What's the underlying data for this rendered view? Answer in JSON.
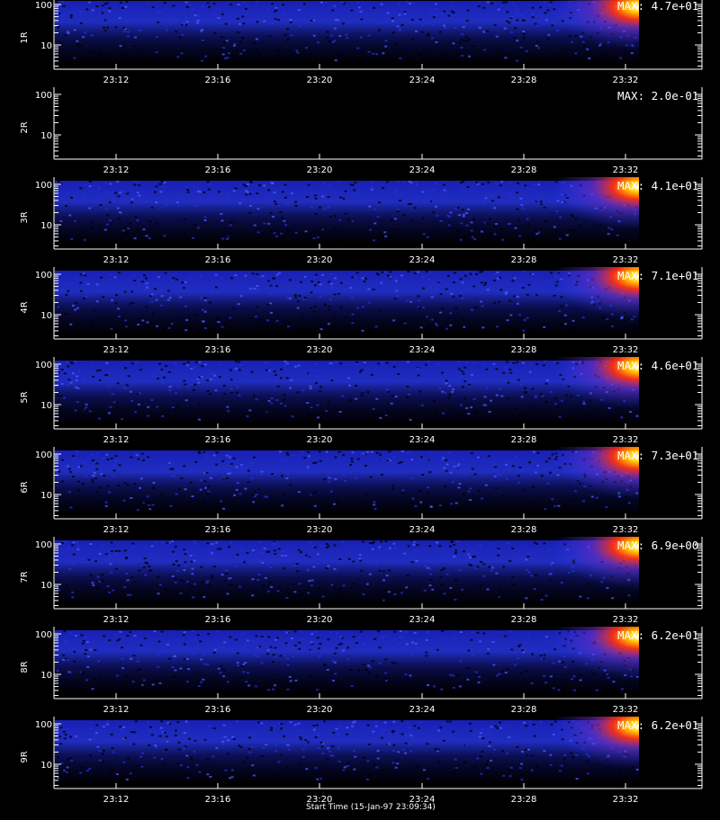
{
  "chart_data": {
    "type": "heatmap",
    "x_tick_labels": [
      "23:12",
      "23:16",
      "23:20",
      "23:24",
      "23:28",
      "23:32"
    ],
    "y_tick_labels": [
      "10",
      "100"
    ],
    "y_scale": "log",
    "x_caption": "Start Time (15-Jan-97 23:09:34)",
    "panels": [
      {
        "label": "1R",
        "max_label": "MAX: 4.7e+01",
        "max": 47.0,
        "has_data": true
      },
      {
        "label": "2R",
        "max_label": "MAX: 2.0e-01",
        "max": 0.2,
        "has_data": false
      },
      {
        "label": "3R",
        "max_label": "MAX: 4.1e+01",
        "max": 41.0,
        "has_data": true
      },
      {
        "label": "4R",
        "max_label": "MAX: 7.1e+01",
        "max": 71.0,
        "has_data": true
      },
      {
        "label": "5R",
        "max_label": "MAX: 4.6e+01",
        "max": 46.0,
        "has_data": true
      },
      {
        "label": "6R",
        "max_label": "MAX: 7.3e+01",
        "max": 73.0,
        "has_data": true
      },
      {
        "label": "7R",
        "max_label": "MAX: 6.9e+00",
        "max": 6.9,
        "has_data": true
      },
      {
        "label": "8R",
        "max_label": "MAX: 6.2e+01",
        "max": 62.0,
        "has_data": true
      },
      {
        "label": "9R",
        "max_label": "MAX: 6.2e+01",
        "max": 62.0,
        "has_data": true
      }
    ],
    "colors": {
      "background": "#000000",
      "axis": "#ffffff",
      "low": "#0a0a6e",
      "mid": "#2a3cff",
      "high": "#ffd000",
      "peak": "#ffffff"
    }
  }
}
